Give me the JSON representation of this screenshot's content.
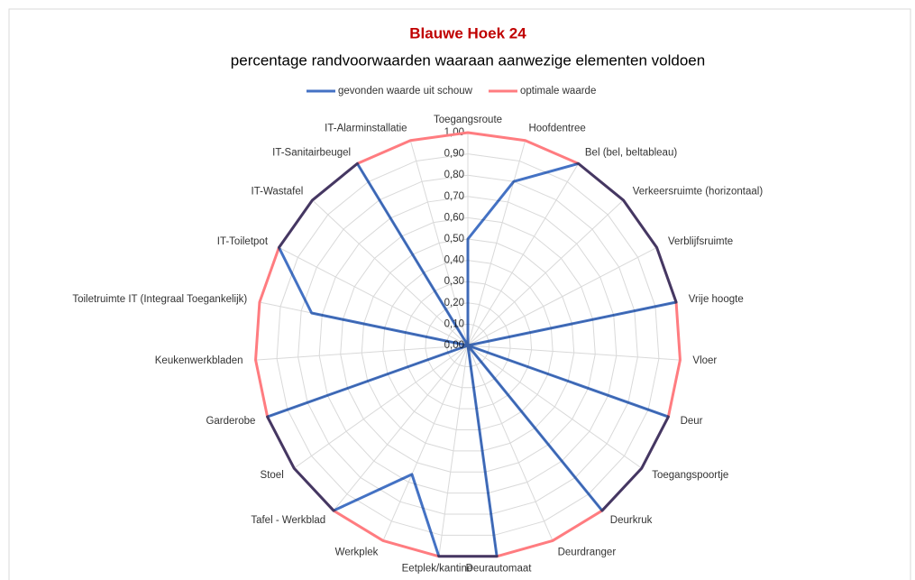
{
  "chart_data": {
    "type": "radar",
    "title": "Blauwe Hoek 24",
    "subtitle": "percentage randvoorwaarden waaraan aanwezige elementen voldoen",
    "categories": [
      "Toegangsroute",
      "Hoofdentree",
      "Bel (bel, beltableau)",
      "Verkeersruimte (horizontaal)",
      "Verblijfsruimte",
      "Vrije hoogte",
      "Vloer",
      "Deur",
      "Toegangspoortje",
      "Deurkruk",
      "Deurdranger",
      "Deurautomaat",
      "Eetplek/kantine",
      "Werkplek",
      "Tafel - Werkblad",
      "Stoel",
      "Garderobe",
      "Keukenwerkbladen",
      "Toiletruimte IT (Integraal Toegankelijk)",
      "IT-Toiletpot",
      "IT-Wastafel",
      "IT-Sanitairbeugel",
      "IT-Alarminstallatie"
    ],
    "series": [
      {
        "name": "gevonden waarde uit schouw",
        "color": "#4472c4",
        "values": [
          0.5,
          0.8,
          1,
          1,
          1,
          1,
          0,
          1,
          1,
          1,
          0,
          1,
          1,
          0.66,
          1,
          1,
          1,
          0,
          0.75,
          1,
          1,
          1,
          0
        ]
      },
      {
        "name": "optimale waarde",
        "color": "#ff7c80",
        "values": [
          1,
          1,
          1,
          1,
          1,
          1,
          1,
          1,
          1,
          1,
          1,
          1,
          1,
          1,
          1,
          1,
          1,
          1,
          1,
          1,
          1,
          1,
          1
        ]
      }
    ],
    "ylim": [
      0,
      1
    ],
    "yticks": [
      {
        "value": 0,
        "label": "0,00"
      },
      {
        "value": 0.1,
        "label": "0,10"
      },
      {
        "value": 0.2,
        "label": "0,20"
      },
      {
        "value": 0.3,
        "label": "0,30"
      },
      {
        "value": 0.4,
        "label": "0,40"
      },
      {
        "value": 0.5,
        "label": "0,50"
      },
      {
        "value": 0.6,
        "label": "0,60"
      },
      {
        "value": 0.7,
        "label": "0,70"
      },
      {
        "value": 0.8,
        "label": "0,80"
      },
      {
        "value": 0.9,
        "label": "0,90"
      },
      {
        "value": 1,
        "label": "1,00"
      }
    ],
    "grid": true,
    "legend": "top"
  }
}
